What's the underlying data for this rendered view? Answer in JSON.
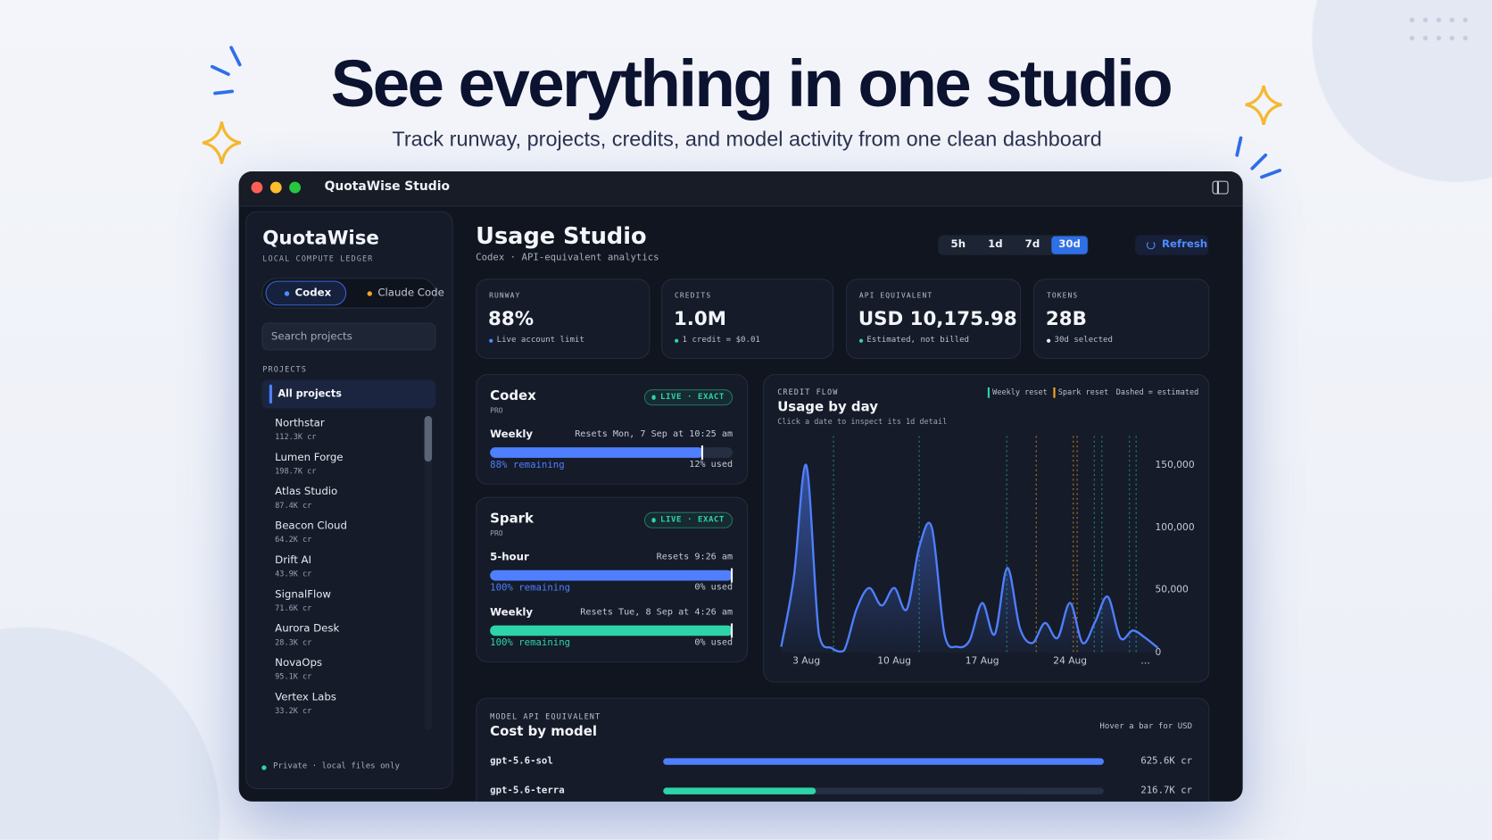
{
  "hero": {
    "title": "See everything in one studio",
    "subtitle": "Track runway, projects, credits, and model activity from one clean dashboard"
  },
  "window": {
    "title": "QuotaWise Studio"
  },
  "sidebar": {
    "brand": "QuotaWise",
    "tagline": "LOCAL COMPUTE LEDGER",
    "tabs": [
      {
        "label": "Codex",
        "color": "#4f8cff"
      },
      {
        "label": "Claude Code",
        "color": "#f5a524"
      }
    ],
    "active_tab": 0,
    "search_placeholder": "Search projects",
    "section": "PROJECTS",
    "all_projects": "All projects",
    "projects": [
      {
        "name": "Northstar",
        "credits": "112.3K cr"
      },
      {
        "name": "Lumen Forge",
        "credits": "198.7K cr"
      },
      {
        "name": "Atlas Studio",
        "credits": "87.4K cr"
      },
      {
        "name": "Beacon Cloud",
        "credits": "64.2K cr"
      },
      {
        "name": "Drift AI",
        "credits": "43.9K cr"
      },
      {
        "name": "SignalFlow",
        "credits": "71.6K cr"
      },
      {
        "name": "Aurora Desk",
        "credits": "28.3K cr"
      },
      {
        "name": "NovaOps",
        "credits": "95.1K cr"
      },
      {
        "name": "Vertex Labs",
        "credits": "33.2K cr"
      }
    ],
    "footer": "Private · local files only"
  },
  "header": {
    "title": "Usage Studio",
    "subtitle": "Codex · API-equivalent analytics",
    "ranges": [
      "5h",
      "1d",
      "7d",
      "30d"
    ],
    "active_range": 3,
    "refresh": "Refresh"
  },
  "stats": [
    {
      "label": "RUNWAY",
      "value": "88%",
      "note": "Live account limit",
      "color": "#4f8cff"
    },
    {
      "label": "CREDITS",
      "value": "1.0M",
      "note": "1 credit = $0.01",
      "color": "#2dd4a8"
    },
    {
      "label": "API EQUIVALENT",
      "value": "USD 10,175.98",
      "note": "Estimated, not billed",
      "color": "#2dd4a8"
    },
    {
      "label": "TOKENS",
      "value": "28B",
      "note": "30d selected",
      "color": "#e8ecf4"
    }
  ],
  "meter_range": [
    0,
    100
  ],
  "limits": [
    {
      "name": "Codex",
      "plan": "PRO",
      "badge": "LIVE · EXACT",
      "meters": [
        {
          "name": "Weekly",
          "reset": "Resets Mon, 7 Sep at 10:25 am",
          "value": 88,
          "value_label": "88% remaining",
          "used_label": "12% used",
          "color": "#4f7fff"
        }
      ]
    },
    {
      "name": "Spark",
      "plan": "PRO",
      "badge": "LIVE · EXACT",
      "meters": [
        {
          "name": "5-hour",
          "reset": "Resets 9:26 am",
          "value": 100,
          "value_label": "100% remaining",
          "used_label": "0% used",
          "color": "#4f7fff"
        },
        {
          "name": "Weekly",
          "reset": "Resets Tue, 8 Sep at 4:26 am",
          "value": 100,
          "value_label": "100% remaining",
          "used_label": "0% used",
          "color": "#2dd4a8"
        }
      ]
    }
  ],
  "usage_chart": {
    "type": "line",
    "kicker": "CREDIT FLOW",
    "title": "Usage by day",
    "subtitle": "Click a date to inspect its 1d detail",
    "legend": [
      {
        "label": "Weekly reset",
        "color": "#2dd4a8"
      },
      {
        "label": "Spark reset",
        "color": "#f5a524"
      },
      {
        "label": "Dashed = estimated"
      }
    ],
    "categories": [
      null,
      null,
      "3 Aug",
      null,
      null,
      null,
      null,
      null,
      null,
      "10 Aug",
      null,
      null,
      null,
      null,
      null,
      null,
      "17 Aug",
      null,
      null,
      null,
      null,
      null,
      null,
      "24 Aug",
      null,
      null,
      null,
      null,
      null,
      "…",
      null
    ],
    "values": [
      5000,
      60000,
      150000,
      15000,
      4000,
      2000,
      35000,
      52000,
      38000,
      52000,
      35000,
      85000,
      100000,
      15000,
      5000,
      10000,
      40000,
      15000,
      68000,
      20000,
      8000,
      24000,
      12000,
      40000,
      8000,
      25000,
      45000,
      12000,
      18000,
      12000,
      4000
    ],
    "color": "#4f7fff",
    "ylim": [
      0,
      172000
    ],
    "yticks": [
      0,
      {
        "value": 50000,
        "label": "50,000"
      },
      {
        "value": 100000,
        "label": "100,000"
      },
      {
        "value": 150000,
        "label": "150,000"
      }
    ]
  },
  "cost_chart": {
    "type": "bar",
    "kicker": "MODEL API EQUIVALENT",
    "title": "Cost by model",
    "hint": "Hover a bar for USD",
    "categories": [
      "gpt-5.6-sol",
      "gpt-5.6-terra"
    ],
    "values": [
      625600,
      216700
    ],
    "value_labels": [
      "625.6K cr",
      "216.7K cr"
    ],
    "colors": [
      "#4f7fff",
      "#2dd4a8"
    ],
    "xlim": [
      0,
      625600
    ]
  }
}
